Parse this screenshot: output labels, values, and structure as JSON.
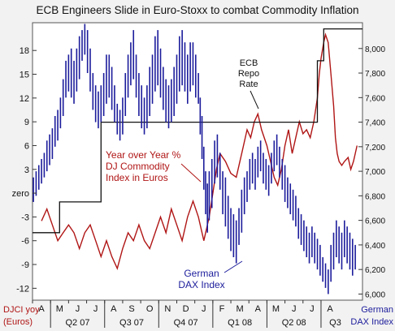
{
  "chart_data": {
    "type": "line",
    "title": "ECB Engineers Slide in Euro-Stoxx to combat Commodity Inflation",
    "left_axis": {
      "label_line1": "DJCI yoy",
      "label_line2": "(Euros)",
      "ticks": [
        {
          "value": 18,
          "label": "18"
        },
        {
          "value": 15,
          "label": "15"
        },
        {
          "value": 12,
          "label": "12"
        },
        {
          "value": 9,
          "label": "9"
        },
        {
          "value": 6,
          "label": "6"
        },
        {
          "value": 3,
          "label": "3"
        },
        {
          "value": 0,
          "label": "zero"
        },
        {
          "value": -3,
          "label": "-3"
        },
        {
          "value": -6,
          "label": "-6"
        },
        {
          "value": -9,
          "label": "-9"
        },
        {
          "value": -12,
          "label": "-12"
        }
      ],
      "range": [
        -13.5,
        21.5
      ]
    },
    "right_axis": {
      "label_line1": "German",
      "label_line2": "DAX Index",
      "ticks": [
        "6,000",
        "6,200",
        "6,400",
        "6,600",
        "6,800",
        "7,000",
        "7,200",
        "7,400",
        "7,600",
        "7,800",
        "8,000"
      ],
      "tick_values": [
        6000,
        6200,
        6400,
        6600,
        6800,
        7000,
        7200,
        7400,
        7600,
        7800,
        8000
      ],
      "range": [
        5950,
        8210
      ]
    },
    "x_axis": {
      "months": [
        "A",
        "M",
        "J",
        "J",
        "A",
        "S",
        "O",
        "N",
        "D",
        "J",
        "F",
        "M",
        "A",
        "M",
        "J",
        "J",
        "A"
      ],
      "quarters": [
        "Q2 07",
        "Q3 07",
        "Q4 07",
        "Q1 08",
        "Q2 08",
        "Q3"
      ]
    },
    "annotations": {
      "ecb_line1": "ECB",
      "ecb_line2": "Repo",
      "ecb_line3": "Rate",
      "yoy_line1": "Year over Year %",
      "yoy_line2": "DJ Commodity",
      "yoy_line3": "Index in Euros",
      "dax_line1": "German",
      "dax_line2": "DAX Index"
    },
    "series": [
      {
        "name": "Year over Year % DJ Commodity Index in Euros",
        "axis": "left",
        "color": "#b01515",
        "points": [
          [
            0.5,
            -3.5
          ],
          [
            0.8,
            -2
          ],
          [
            1.1,
            -4
          ],
          [
            1.4,
            -6
          ],
          [
            1.7,
            -5
          ],
          [
            2,
            -4
          ],
          [
            2.3,
            -5
          ],
          [
            2.6,
            -7
          ],
          [
            2.9,
            -5
          ],
          [
            3.2,
            -4
          ],
          [
            3.5,
            -6
          ],
          [
            3.8,
            -8
          ],
          [
            4.1,
            -6
          ],
          [
            4.4,
            -8
          ],
          [
            4.7,
            -9.5
          ],
          [
            5,
            -7
          ],
          [
            5.3,
            -5
          ],
          [
            5.6,
            -6
          ],
          [
            5.9,
            -4
          ],
          [
            6.2,
            -6
          ],
          [
            6.5,
            -7
          ],
          [
            6.8,
            -5
          ],
          [
            7.1,
            -3
          ],
          [
            7.4,
            -5
          ],
          [
            7.7,
            -2
          ],
          [
            8,
            -4
          ],
          [
            8.3,
            -6
          ],
          [
            8.6,
            -3
          ],
          [
            8.9,
            -1
          ],
          [
            9.2,
            -3
          ],
          [
            9.5,
            -6
          ],
          [
            9.8,
            -3
          ],
          [
            10,
            0
          ],
          [
            10.2,
            3
          ],
          [
            10.4,
            5
          ],
          [
            10.7,
            4
          ],
          [
            11,
            2.5
          ],
          [
            11.3,
            2
          ],
          [
            11.6,
            5
          ],
          [
            11.9,
            8
          ],
          [
            12.1,
            7
          ],
          [
            12.3,
            9
          ],
          [
            12.5,
            10
          ],
          [
            12.7,
            8
          ],
          [
            13,
            6
          ],
          [
            13.2,
            4
          ],
          [
            13.4,
            2
          ],
          [
            13.6,
            1
          ],
          [
            13.8,
            3
          ],
          [
            14,
            6
          ],
          [
            14.2,
            8
          ],
          [
            14.4,
            5
          ],
          [
            14.6,
            7
          ],
          [
            14.8,
            9
          ],
          [
            15,
            7.5
          ],
          [
            15.2,
            8
          ],
          [
            15.4,
            7
          ],
          [
            15.6,
            9
          ],
          [
            15.8,
            12
          ],
          [
            15.9,
            15
          ],
          [
            16,
            17
          ],
          [
            16.15,
            19
          ],
          [
            16.25,
            20
          ],
          [
            16.4,
            19
          ],
          [
            16.55,
            15
          ],
          [
            16.7,
            11
          ],
          [
            16.8,
            7
          ],
          [
            16.9,
            5
          ],
          [
            17,
            4
          ],
          [
            17.15,
            3.5
          ],
          [
            17.3,
            4
          ],
          [
            17.5,
            4.5
          ],
          [
            17.65,
            3
          ],
          [
            17.8,
            4
          ],
          [
            18,
            6
          ]
        ]
      },
      {
        "name": "ECB Repo Rate",
        "axis": "right",
        "color": "#111111",
        "step": [
          [
            0,
            6500
          ],
          [
            1.5,
            6500
          ],
          [
            1.5,
            6750
          ],
          [
            3.8,
            6750
          ],
          [
            3.8,
            7400
          ],
          [
            15.8,
            7400
          ],
          [
            15.8,
            7900
          ],
          [
            16.15,
            7900
          ],
          [
            16.15,
            8160
          ],
          [
            18.3,
            8160
          ]
        ]
      },
      {
        "name": "German DAX Index",
        "axis": "right",
        "color": "#1c1c9c",
        "hl_bars": [
          [
            0.05,
            6750,
            6950
          ],
          [
            0.2,
            6800,
            7000
          ],
          [
            0.35,
            6850,
            7050
          ],
          [
            0.5,
            6900,
            7100
          ],
          [
            0.65,
            6950,
            7150
          ],
          [
            0.8,
            7000,
            7250
          ],
          [
            0.95,
            7050,
            7300
          ],
          [
            1.1,
            7100,
            7350
          ],
          [
            1.25,
            7200,
            7450
          ],
          [
            1.4,
            7250,
            7500
          ],
          [
            1.55,
            7350,
            7600
          ],
          [
            1.7,
            7450,
            7750
          ],
          [
            1.85,
            7600,
            7900
          ],
          [
            2.0,
            7650,
            7950
          ],
          [
            2.15,
            7600,
            8000
          ],
          [
            2.3,
            7550,
            7900
          ],
          [
            2.45,
            7650,
            8000
          ],
          [
            2.6,
            7750,
            8100
          ],
          [
            2.75,
            7900,
            8150
          ],
          [
            2.9,
            7950,
            8200
          ],
          [
            3.05,
            7800,
            8150
          ],
          [
            3.2,
            7650,
            8000
          ],
          [
            3.35,
            7500,
            7800
          ],
          [
            3.5,
            7400,
            7700
          ],
          [
            3.65,
            7350,
            7650
          ],
          [
            3.8,
            7400,
            7700
          ],
          [
            3.95,
            7450,
            7800
          ],
          [
            4.1,
            7550,
            7950
          ],
          [
            4.25,
            7600,
            7950
          ],
          [
            4.4,
            7500,
            7850
          ],
          [
            4.55,
            7400,
            7700
          ],
          [
            4.7,
            7300,
            7550
          ],
          [
            4.85,
            7250,
            7500
          ],
          [
            5.0,
            7300,
            7600
          ],
          [
            5.15,
            7450,
            7800
          ],
          [
            5.3,
            7600,
            7950
          ],
          [
            5.45,
            7700,
            8050
          ],
          [
            5.6,
            7750,
            8150
          ],
          [
            5.75,
            7600,
            7950
          ],
          [
            5.9,
            7450,
            7800
          ],
          [
            6.05,
            7350,
            7700
          ],
          [
            6.2,
            7300,
            7600
          ],
          [
            6.35,
            7350,
            7700
          ],
          [
            6.5,
            7450,
            7850
          ],
          [
            6.65,
            7550,
            7950
          ],
          [
            6.8,
            7650,
            8100
          ],
          [
            6.95,
            7700,
            8150
          ],
          [
            7.1,
            7600,
            8000
          ],
          [
            7.25,
            7500,
            7850
          ],
          [
            7.4,
            7400,
            7750
          ],
          [
            7.55,
            7350,
            7700
          ],
          [
            7.7,
            7400,
            7750
          ],
          [
            7.85,
            7450,
            7850
          ],
          [
            8.0,
            7550,
            7950
          ],
          [
            8.15,
            7650,
            8100
          ],
          [
            8.3,
            7700,
            8150
          ],
          [
            8.45,
            7650,
            8050
          ],
          [
            8.6,
            7550,
            7950
          ],
          [
            8.75,
            7650,
            8050
          ],
          [
            8.9,
            7700,
            8050
          ],
          [
            9.05,
            7600,
            7950
          ],
          [
            9.2,
            7550,
            7800
          ],
          [
            9.3,
            7300,
            7600
          ],
          [
            9.4,
            7100,
            7450
          ],
          [
            9.5,
            6850,
            7200
          ],
          [
            9.6,
            6650,
            7000
          ],
          [
            9.7,
            6500,
            6900
          ],
          [
            9.8,
            6600,
            7000
          ],
          [
            9.95,
            6700,
            7100
          ],
          [
            10.1,
            6900,
            7250
          ],
          [
            10.25,
            6950,
            7300
          ],
          [
            10.4,
            6850,
            7150
          ],
          [
            10.55,
            6650,
            7000
          ],
          [
            10.7,
            6550,
            6950
          ],
          [
            10.85,
            6450,
            6800
          ],
          [
            11.0,
            6350,
            6700
          ],
          [
            11.15,
            6300,
            6650
          ],
          [
            11.3,
            6250,
            6600
          ],
          [
            11.45,
            6400,
            6700
          ],
          [
            11.6,
            6500,
            6850
          ],
          [
            11.75,
            6650,
            6950
          ],
          [
            11.9,
            6750,
            7000
          ],
          [
            12.05,
            6850,
            7100
          ],
          [
            12.2,
            6900,
            7150
          ],
          [
            12.35,
            6850,
            7100
          ],
          [
            12.5,
            6950,
            7200
          ],
          [
            12.65,
            7000,
            7250
          ],
          [
            12.8,
            6900,
            7150
          ],
          [
            12.95,
            6850,
            7100
          ],
          [
            13.1,
            6800,
            7050
          ],
          [
            13.25,
            6900,
            7150
          ],
          [
            13.4,
            7000,
            7250
          ],
          [
            13.55,
            7050,
            7300
          ],
          [
            13.7,
            6950,
            7200
          ],
          [
            13.85,
            6850,
            7100
          ],
          [
            14.0,
            6750,
            7050
          ],
          [
            14.15,
            6700,
            6950
          ],
          [
            14.3,
            6650,
            6900
          ],
          [
            14.45,
            6600,
            6850
          ],
          [
            14.6,
            6550,
            6800
          ],
          [
            14.75,
            6450,
            6700
          ],
          [
            14.9,
            6400,
            6650
          ],
          [
            15.05,
            6350,
            6600
          ],
          [
            15.2,
            6300,
            6550
          ],
          [
            15.35,
            6250,
            6500
          ],
          [
            15.5,
            6300,
            6550
          ],
          [
            15.65,
            6250,
            6500
          ],
          [
            15.8,
            6200,
            6450
          ],
          [
            15.95,
            6150,
            6400
          ],
          [
            16.1,
            6100,
            6300
          ],
          [
            16.25,
            6050,
            6250
          ],
          [
            16.4,
            6000,
            6200
          ],
          [
            16.55,
            6100,
            6400
          ],
          [
            16.7,
            6200,
            6500
          ],
          [
            16.85,
            6300,
            6600
          ],
          [
            17.0,
            6250,
            6550
          ],
          [
            17.15,
            6200,
            6500
          ],
          [
            17.3,
            6300,
            6600
          ],
          [
            17.45,
            6250,
            6550
          ],
          [
            17.6,
            6200,
            6500
          ],
          [
            17.75,
            6150,
            6450
          ],
          [
            17.9,
            6200,
            6400
          ]
        ]
      }
    ]
  }
}
